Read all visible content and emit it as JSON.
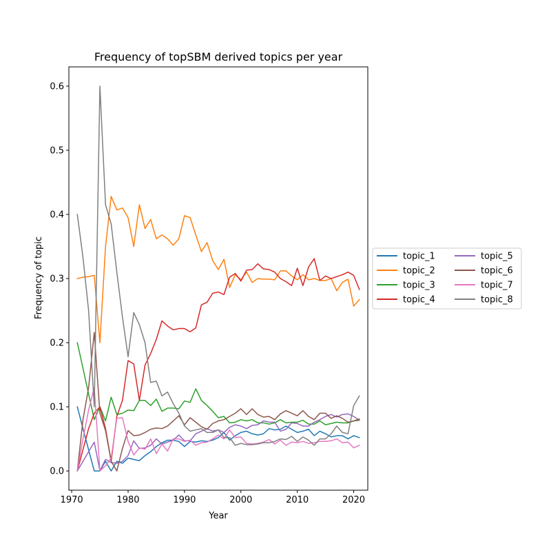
{
  "chart_data": {
    "type": "line",
    "title": "Frequency of topSBM derived topics per year",
    "xlabel": "Year",
    "ylabel": "Frequency of topic",
    "xlim": [
      1969.5,
      2022.5
    ],
    "ylim": [
      -0.03,
      0.63
    ],
    "xticks": [
      1970,
      1980,
      1990,
      2000,
      2010,
      2020
    ],
    "yticks": [
      "0.0",
      "0.1",
      "0.2",
      "0.3",
      "0.4",
      "0.5",
      "0.6"
    ],
    "grid": false,
    "legend_position": "center-right, outside plot",
    "x": [
      1971,
      1972,
      1973,
      1974,
      1975,
      1976,
      1977,
      1978,
      1979,
      1980,
      1981,
      1982,
      1983,
      1984,
      1985,
      1986,
      1987,
      1988,
      1989,
      1990,
      1991,
      1992,
      1993,
      1994,
      1995,
      1996,
      1997,
      1998,
      1999,
      2000,
      2001,
      2002,
      2003,
      2004,
      2005,
      2006,
      2007,
      2008,
      2009,
      2010,
      2011,
      2012,
      2013,
      2014,
      2015,
      2016,
      2017,
      2018,
      2019,
      2020,
      2021
    ],
    "series": [
      {
        "name": "topic_1",
        "color": "#1f77b4",
        "values": [
          0.1,
          0.066,
          0.033,
          0.0,
          0.0,
          0.015,
          0.0,
          0.015,
          0.012,
          0.02,
          0.018,
          0.016,
          0.024,
          0.03,
          0.038,
          0.044,
          0.048,
          0.048,
          0.046,
          0.038,
          0.046,
          0.045,
          0.047,
          0.046,
          0.048,
          0.052,
          0.06,
          0.048,
          0.055,
          0.06,
          0.062,
          0.058,
          0.056,
          0.058,
          0.066,
          0.064,
          0.065,
          0.07,
          0.065,
          0.06,
          0.062,
          0.065,
          0.055,
          0.062,
          0.058,
          0.053,
          0.055,
          0.055,
          0.05,
          0.055,
          0.052
        ]
      },
      {
        "name": "topic_2",
        "color": "#ff7f0e",
        "values": [
          0.3,
          0.302,
          0.303,
          0.305,
          0.2,
          0.35,
          0.428,
          0.407,
          0.41,
          0.395,
          0.35,
          0.415,
          0.378,
          0.392,
          0.362,
          0.368,
          0.362,
          0.352,
          0.362,
          0.398,
          0.395,
          0.368,
          0.342,
          0.356,
          0.328,
          0.314,
          0.33,
          0.286,
          0.306,
          0.298,
          0.31,
          0.294,
          0.3,
          0.299,
          0.299,
          0.298,
          0.312,
          0.312,
          0.304,
          0.298,
          0.306,
          0.298,
          0.3,
          0.297,
          0.297,
          0.3,
          0.281,
          0.294,
          0.299,
          0.257,
          0.267
        ]
      },
      {
        "name": "topic_3",
        "color": "#2ca02c",
        "values": [
          0.2,
          0.16,
          0.12,
          0.08,
          0.1,
          0.078,
          0.115,
          0.088,
          0.09,
          0.095,
          0.094,
          0.11,
          0.11,
          0.102,
          0.112,
          0.093,
          0.098,
          0.098,
          0.097,
          0.109,
          0.107,
          0.128,
          0.11,
          0.102,
          0.093,
          0.083,
          0.085,
          0.075,
          0.076,
          0.08,
          0.078,
          0.08,
          0.075,
          0.075,
          0.073,
          0.075,
          0.08,
          0.075,
          0.076,
          0.076,
          0.079,
          0.073,
          0.073,
          0.078,
          0.072,
          0.074,
          0.076,
          0.075,
          0.075,
          0.078,
          0.079
        ]
      },
      {
        "name": "topic_4",
        "color": "#d62728",
        "values": [
          0.0,
          0.033,
          0.066,
          0.09,
          0.1,
          0.066,
          0.015,
          0.085,
          0.11,
          0.172,
          0.167,
          0.11,
          0.165,
          0.183,
          0.205,
          0.234,
          0.226,
          0.22,
          0.222,
          0.222,
          0.217,
          0.223,
          0.259,
          0.263,
          0.277,
          0.279,
          0.275,
          0.302,
          0.308,
          0.296,
          0.313,
          0.314,
          0.323,
          0.315,
          0.314,
          0.31,
          0.3,
          0.295,
          0.289,
          0.316,
          0.289,
          0.318,
          0.331,
          0.297,
          0.304,
          0.3,
          0.303,
          0.306,
          0.31,
          0.305,
          0.283
        ]
      },
      {
        "name": "topic_5",
        "color": "#9467bd",
        "values": [
          0.0,
          0.015,
          0.03,
          0.045,
          0.0,
          0.018,
          0.013,
          0.012,
          0.015,
          0.024,
          0.047,
          0.035,
          0.036,
          0.04,
          0.05,
          0.042,
          0.045,
          0.048,
          0.056,
          0.047,
          0.047,
          0.058,
          0.062,
          0.066,
          0.062,
          0.064,
          0.06,
          0.068,
          0.072,
          0.07,
          0.066,
          0.071,
          0.072,
          0.078,
          0.076,
          0.076,
          0.062,
          0.065,
          0.075,
          0.074,
          0.07,
          0.07,
          0.076,
          0.08,
          0.085,
          0.088,
          0.084,
          0.088,
          0.089,
          0.085,
          0.079
        ]
      },
      {
        "name": "topic_6",
        "color": "#8c564b",
        "values": [
          0.0,
          0.08,
          0.13,
          0.216,
          0.09,
          0.063,
          0.015,
          0.0,
          0.035,
          0.063,
          0.055,
          0.056,
          0.06,
          0.065,
          0.067,
          0.066,
          0.07,
          0.078,
          0.086,
          0.072,
          0.083,
          0.076,
          0.069,
          0.065,
          0.074,
          0.078,
          0.08,
          0.085,
          0.09,
          0.097,
          0.088,
          0.097,
          0.088,
          0.084,
          0.085,
          0.08,
          0.089,
          0.094,
          0.09,
          0.086,
          0.094,
          0.085,
          0.08,
          0.09,
          0.09,
          0.082,
          0.086,
          0.082,
          0.076,
          0.078,
          0.081
        ]
      },
      {
        "name": "topic_7",
        "color": "#e377c2",
        "values": [
          0.0,
          0.05,
          0.095,
          0.13,
          0.0,
          0.008,
          0.02,
          0.082,
          0.083,
          0.046,
          0.025,
          0.036,
          0.034,
          0.05,
          0.027,
          0.042,
          0.031,
          0.05,
          0.05,
          0.046,
          0.048,
          0.04,
          0.044,
          0.045,
          0.05,
          0.056,
          0.05,
          0.064,
          0.052,
          0.053,
          0.043,
          0.042,
          0.043,
          0.045,
          0.049,
          0.042,
          0.048,
          0.04,
          0.045,
          0.044,
          0.046,
          0.043,
          0.044,
          0.046,
          0.046,
          0.047,
          0.05,
          0.044,
          0.045,
          0.036,
          0.04
        ]
      },
      {
        "name": "topic_8",
        "color": "#7f7f7f",
        "values": [
          0.4,
          0.333,
          0.25,
          0.1,
          0.6,
          0.415,
          0.385,
          0.31,
          0.24,
          0.178,
          0.247,
          0.228,
          0.2,
          0.138,
          0.14,
          0.117,
          0.123,
          0.105,
          0.09,
          0.07,
          0.062,
          0.064,
          0.066,
          0.06,
          0.06,
          0.064,
          0.052,
          0.052,
          0.04,
          0.043,
          0.041,
          0.041,
          0.042,
          0.044,
          0.044,
          0.046,
          0.05,
          0.049,
          0.054,
          0.046,
          0.053,
          0.048,
          0.04,
          0.05,
          0.05,
          0.058,
          0.07,
          0.06,
          0.058,
          0.102,
          0.117
        ]
      }
    ]
  }
}
